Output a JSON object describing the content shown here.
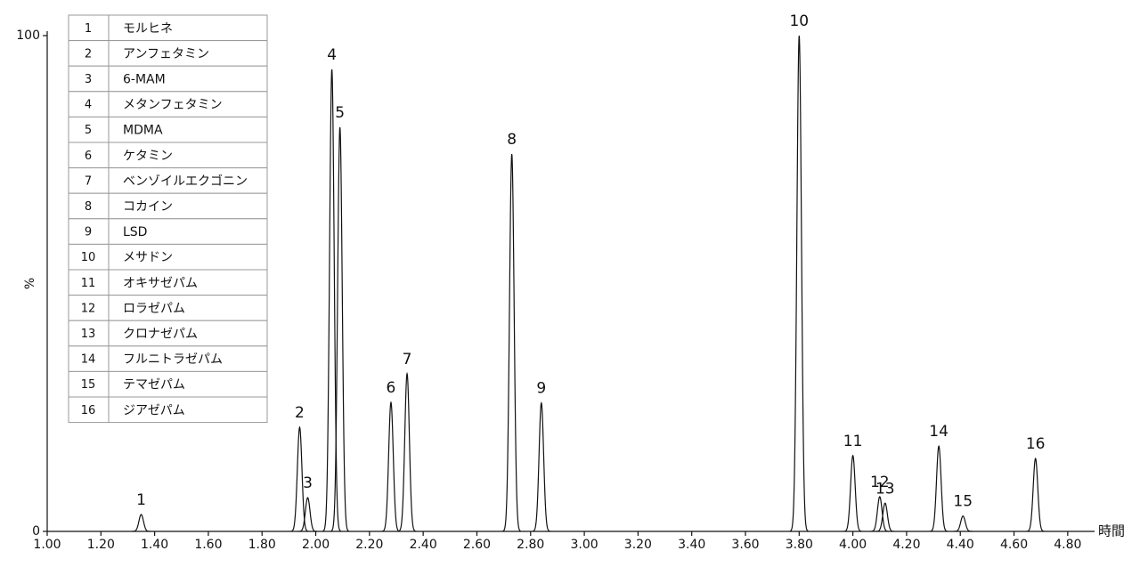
{
  "chart_data": {
    "type": "chromatogram",
    "x_label": "時間",
    "y_label": "%",
    "xlim": [
      1.0,
      4.9
    ],
    "ylim": [
      0,
      100
    ],
    "xticks": [
      {
        "value": 1.0,
        "label": "1.00"
      },
      {
        "value": 1.2,
        "label": "1.20"
      },
      {
        "value": 1.4,
        "label": "1.40"
      },
      {
        "value": 1.6,
        "label": "1.60"
      },
      {
        "value": 1.8,
        "label": "1.80"
      },
      {
        "value": 2.0,
        "label": "2.00"
      },
      {
        "value": 2.2,
        "label": "2.20"
      },
      {
        "value": 2.4,
        "label": "2.40"
      },
      {
        "value": 2.6,
        "label": "2.60"
      },
      {
        "value": 2.8,
        "label": "2.80"
      },
      {
        "value": 3.0,
        "label": "3.00"
      },
      {
        "value": 3.2,
        "label": "3.20"
      },
      {
        "value": 3.4,
        "label": "3.40"
      },
      {
        "value": 3.6,
        "label": "3.60"
      },
      {
        "value": 3.8,
        "label": "3.80"
      },
      {
        "value": 4.0,
        "label": "4.00"
      },
      {
        "value": 4.2,
        "label": "4.20"
      },
      {
        "value": 4.4,
        "label": "4.40"
      },
      {
        "value": 4.6,
        "label": "4.60"
      },
      {
        "value": 4.8,
        "label": "4.80"
      }
    ],
    "yticks": [
      0,
      100
    ],
    "x": [
      1.35,
      1.94,
      1.97,
      2.06,
      2.09,
      2.28,
      2.34,
      2.73,
      2.84,
      3.8,
      4.0,
      4.1,
      4.12,
      4.32,
      4.41,
      4.68
    ],
    "values": [
      3.4,
      21,
      6.8,
      93.2,
      81.5,
      26,
      31.8,
      76.1,
      25.9,
      100,
      15.3,
      7.0,
      5.7,
      17.2,
      3.1,
      14.7
    ],
    "compounds": [
      {
        "number": "1",
        "name": "モルヒネ"
      },
      {
        "number": "2",
        "name": "アンフェタミン"
      },
      {
        "number": "3",
        "name": "6-MAM"
      },
      {
        "number": "4",
        "name": "メタンフェタミン"
      },
      {
        "number": "5",
        "name": "MDMA"
      },
      {
        "number": "6",
        "name": "ケタミン"
      },
      {
        "number": "7",
        "name": "ベンゾイルエクゴニン"
      },
      {
        "number": "8",
        "name": "コカイン"
      },
      {
        "number": "9",
        "name": "LSD"
      },
      {
        "number": "10",
        "name": "メサドン"
      },
      {
        "number": "11",
        "name": "オキサゼパム"
      },
      {
        "number": "12",
        "name": "ロラゼパム"
      },
      {
        "number": "13",
        "name": "クロナゼパム"
      },
      {
        "number": "14",
        "name": "フルニトラゼパム"
      },
      {
        "number": "15",
        "name": "テマゼパム"
      },
      {
        "number": "16",
        "name": "ジアゼパム"
      }
    ]
  }
}
